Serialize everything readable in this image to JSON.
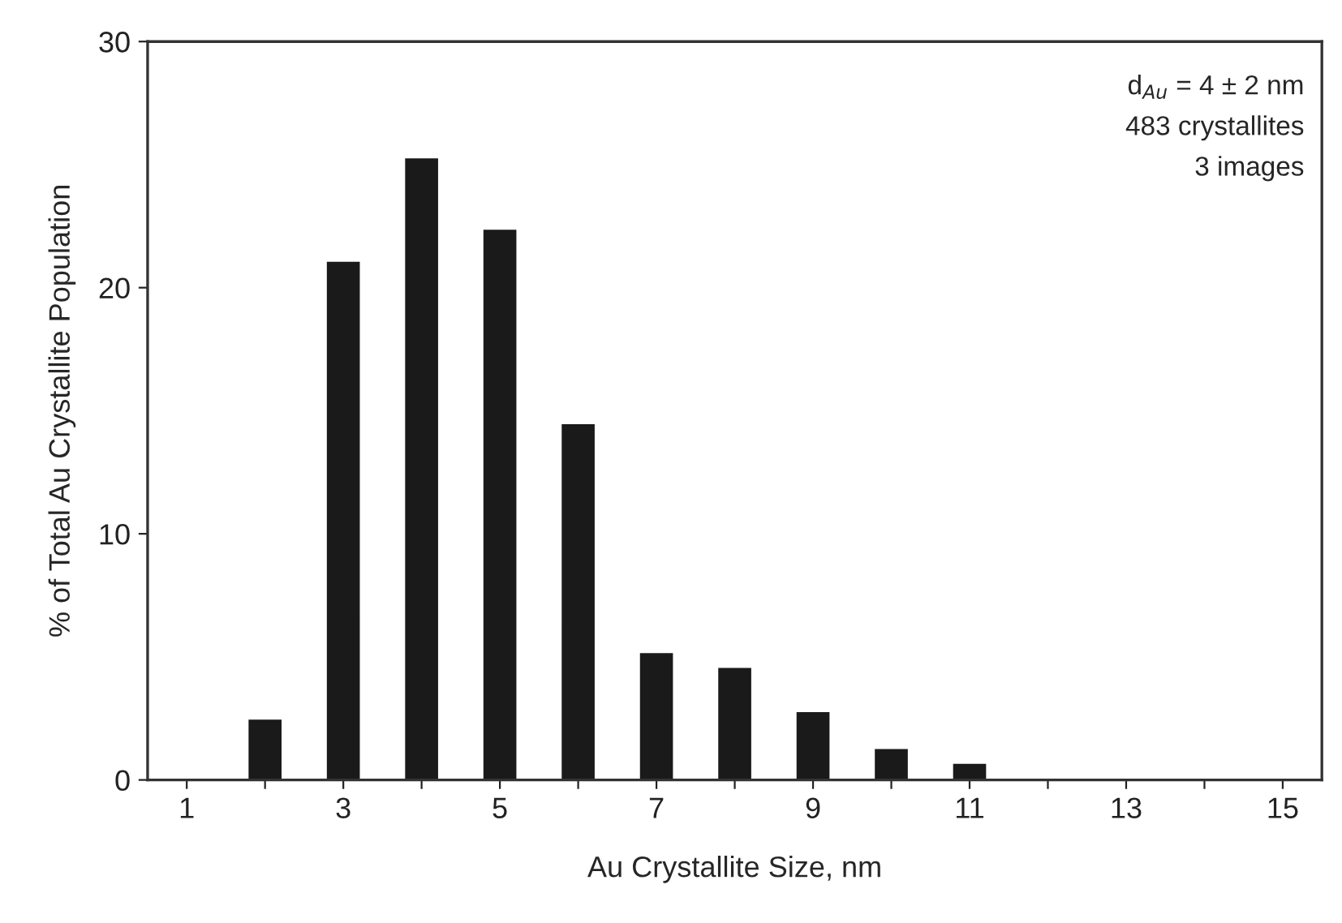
{
  "chart_data": {
    "type": "bar",
    "xlabel": "Au Crystallite Size, nm",
    "ylabel": "% of Total Au Crystallite Population",
    "x": [
      2,
      3,
      4,
      5,
      6,
      7,
      8,
      9,
      10,
      11
    ],
    "values": [
      2.5,
      21.1,
      25.3,
      22.4,
      14.5,
      5.2,
      4.6,
      2.8,
      1.3,
      0.7
    ],
    "color": "#1a1a1a",
    "xlim": [
      0.5,
      15.5
    ],
    "ylim": [
      0,
      30
    ],
    "xticks": [
      1,
      {
        "value": 2,
        "label": null
      },
      3,
      {
        "value": 4,
        "label": null
      },
      5,
      {
        "value": 6,
        "label": null
      },
      7,
      {
        "value": 8,
        "label": null
      },
      9,
      {
        "value": 10,
        "label": null
      },
      11,
      {
        "value": 12,
        "label": null
      },
      13,
      {
        "value": 14,
        "label": null
      },
      15
    ],
    "yticks": [
      0,
      10,
      20,
      30
    ],
    "annotations": [
      "d$_{Au}$ = 4 ± 2 nm",
      "483 crystallites",
      "3 images"
    ]
  }
}
